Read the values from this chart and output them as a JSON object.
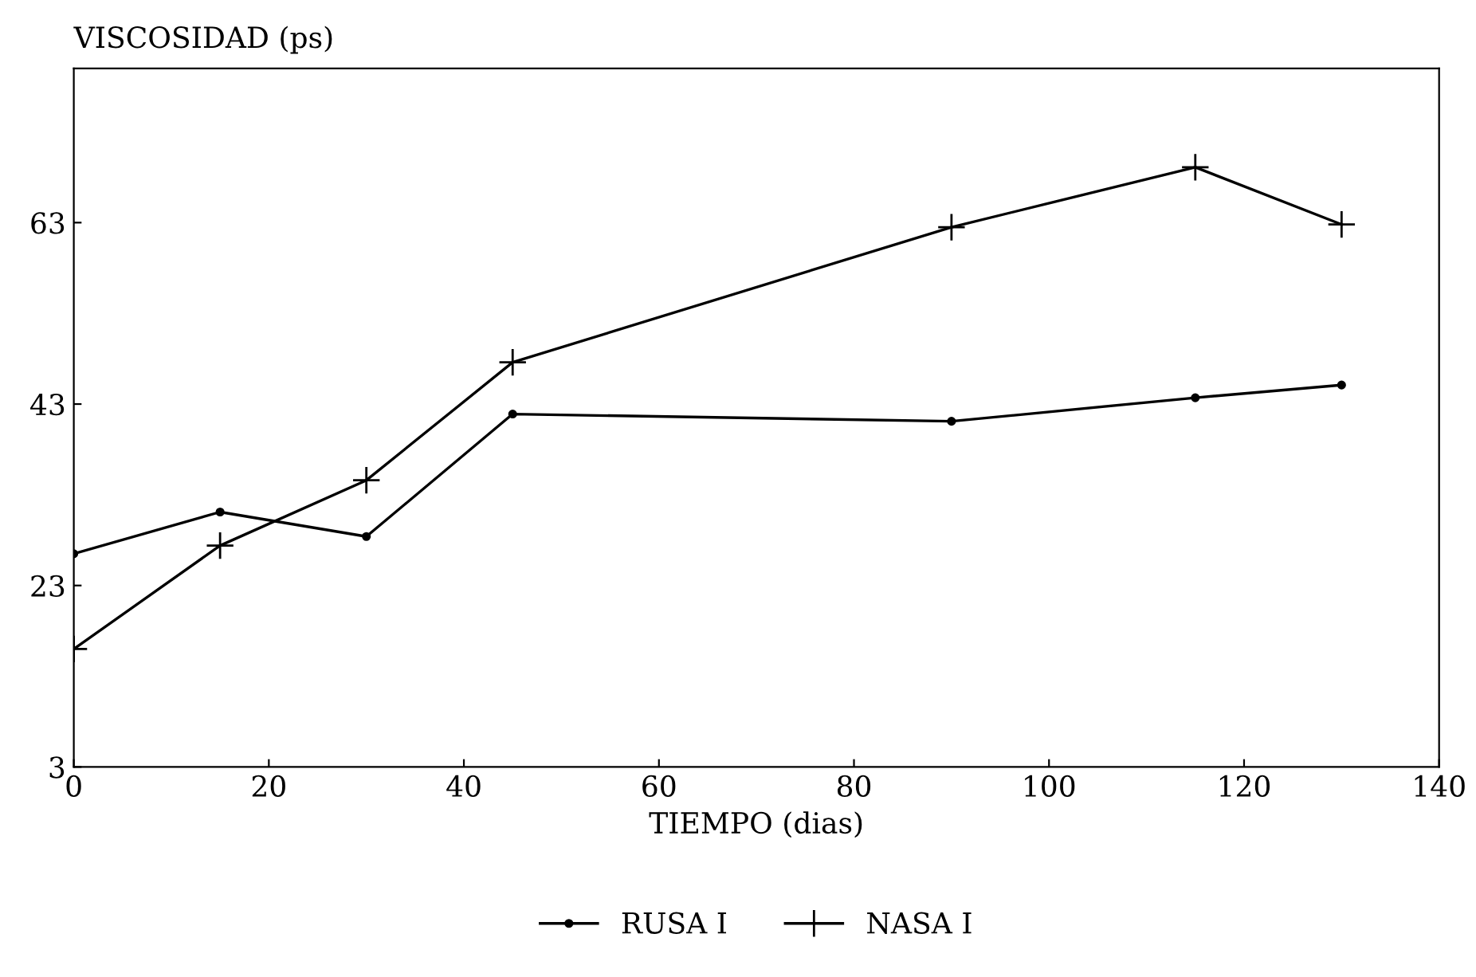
{
  "chart_data": {
    "type": "line",
    "xlabel": "TIEMPO (dias)",
    "ylabel": "VISCOSIDAD (ps)",
    "x": [
      0,
      15,
      30,
      45,
      90,
      115,
      130
    ],
    "series": [
      {
        "name": "RUSA I",
        "color": "#000000",
        "marker": "circle",
        "values": [
          26.5,
          31.1,
          28.4,
          41.9,
          41.1,
          43.7,
          45.1
        ]
      },
      {
        "name": "NASA I",
        "color": "#000000",
        "marker": "cross",
        "values": [
          16,
          27.4,
          34.6,
          47.6,
          62.5,
          69.1,
          62.8
        ]
      }
    ],
    "xlim": [
      0,
      140
    ],
    "xticks": [
      0,
      20,
      40,
      60,
      80,
      100,
      120,
      140
    ],
    "ylim": [
      3,
      80
    ],
    "yticks": [
      3,
      23,
      43,
      63
    ],
    "grid": false,
    "legend": "bottom",
    "line_style": "solid"
  }
}
